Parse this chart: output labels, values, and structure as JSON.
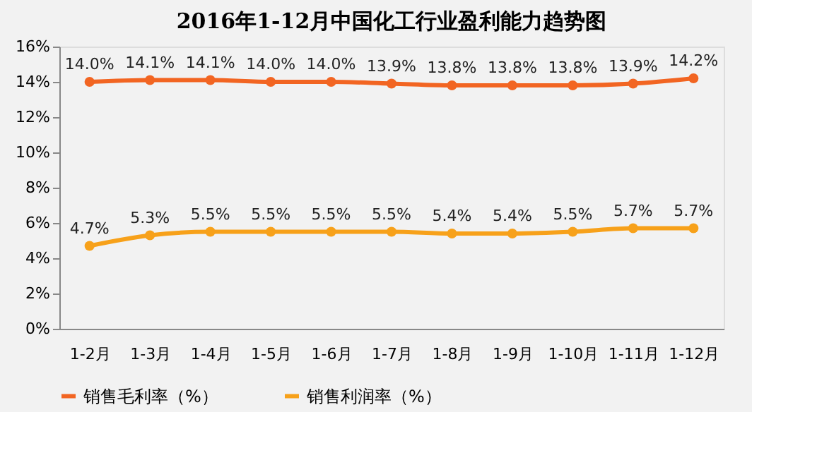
{
  "chart_data": {
    "type": "line",
    "title": "2016年1-12月中国化工行业盈利能力趋势图",
    "categories": [
      "1-2月",
      "1-3月",
      "1-4月",
      "1-5月",
      "1-6月",
      "1-7月",
      "1-8月",
      "1-9月",
      "1-10月",
      "1-11月",
      "1-12月"
    ],
    "series": [
      {
        "name": "销售毛利率（%）",
        "color": "#f26522",
        "values": [
          14.0,
          14.1,
          14.1,
          14.0,
          14.0,
          13.9,
          13.8,
          13.8,
          13.8,
          13.9,
          14.2
        ],
        "value_labels": [
          "14.0%",
          "14.1%",
          "14.1%",
          "14.0%",
          "14.0%",
          "13.9%",
          "13.8%",
          "13.8%",
          "13.8%",
          "13.9%",
          "14.2%"
        ]
      },
      {
        "name": "销售利润率（%）",
        "color": "#f7a11a",
        "values": [
          4.7,
          5.3,
          5.5,
          5.5,
          5.5,
          5.5,
          5.4,
          5.4,
          5.5,
          5.7,
          5.7
        ],
        "value_labels": [
          "4.7%",
          "5.3%",
          "5.5%",
          "5.5%",
          "5.5%",
          "5.5%",
          "5.4%",
          "5.4%",
          "5.5%",
          "5.7%",
          "5.7%"
        ]
      }
    ],
    "ylim": [
      0,
      16
    ],
    "yticks": [
      {
        "value": 0,
        "label": "0%"
      },
      {
        "value": 2,
        "label": "2%"
      },
      {
        "value": 4,
        "label": "4%"
      },
      {
        "value": 6,
        "label": "6%"
      },
      {
        "value": 8,
        "label": "8%"
      },
      {
        "value": 10,
        "label": "10%"
      },
      {
        "value": 12,
        "label": "12%"
      },
      {
        "value": 14,
        "label": "14%"
      },
      {
        "value": 16,
        "label": "16%"
      }
    ],
    "grid": false,
    "legend": "bottom",
    "marker": "circle",
    "line_style": "solid"
  }
}
